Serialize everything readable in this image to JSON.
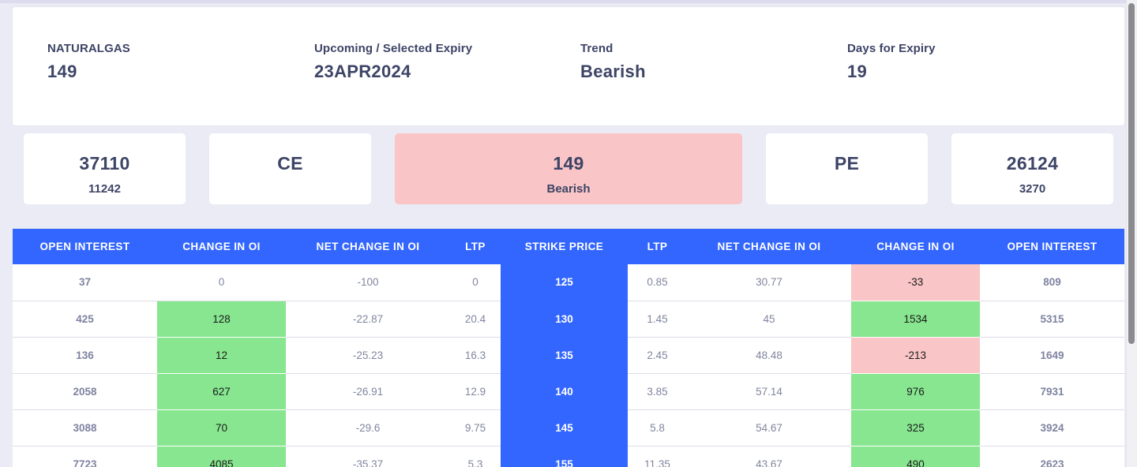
{
  "summary": {
    "symbol": {
      "label": "NATURALGAS",
      "value": "149"
    },
    "expiry": {
      "label": "Upcoming / Selected Expiry",
      "value": "23APR2024"
    },
    "trend": {
      "label": "Trend",
      "value": "Bearish"
    },
    "days": {
      "label": "Days for Expiry",
      "value": "19"
    }
  },
  "stats": {
    "ce_total": {
      "big": "37110",
      "small": "11242"
    },
    "ce_label": {
      "big": "CE"
    },
    "spot": {
      "big": "149",
      "small": "Bearish"
    },
    "pe_label": {
      "big": "PE"
    },
    "pe_total": {
      "big": "26124",
      "small": "3270"
    }
  },
  "table": {
    "headers": [
      "OPEN INTEREST",
      "CHANGE IN OI",
      "NET CHANGE IN OI",
      "LTP",
      "STRIKE PRICE",
      "LTP",
      "NET CHANGE IN OI",
      "CHANGE IN OI",
      "OPEN INTEREST"
    ],
    "rows": [
      [
        "37",
        "0",
        "-100",
        "0",
        "125",
        "0.85",
        "30.77",
        "-33",
        "809"
      ],
      [
        "425",
        "128",
        "-22.87",
        "20.4",
        "130",
        "1.45",
        "45",
        "1534",
        "5315"
      ],
      [
        "136",
        "12",
        "-25.23",
        "16.3",
        "135",
        "2.45",
        "48.48",
        "-213",
        "1649"
      ],
      [
        "2058",
        "627",
        "-26.91",
        "12.9",
        "140",
        "3.85",
        "57.14",
        "976",
        "7931"
      ],
      [
        "3088",
        "70",
        "-29.6",
        "9.75",
        "145",
        "5.8",
        "54.67",
        "325",
        "3924"
      ],
      [
        "7723",
        "4085",
        "-35.37",
        "5.3",
        "155",
        "11.35",
        "43.67",
        "490",
        "2623"
      ]
    ]
  },
  "colors": {
    "accent": "#3366ff",
    "positive": "#87e68f",
    "negative": "#f9c5c6",
    "text": "#3d4466",
    "background": "#eaebf5"
  }
}
